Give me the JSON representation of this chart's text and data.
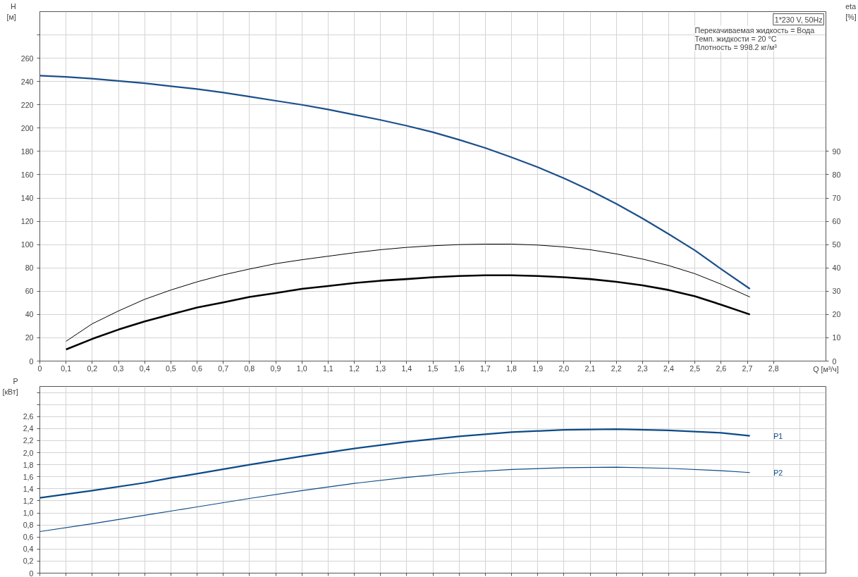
{
  "chart_data": [
    {
      "type": "line",
      "title": "1*230 V, 50Hz",
      "annotations": [
        "Перекачиваемая жидкость = Вода",
        "Темп. жидкости = 20 °C",
        "Плотность = 998.2 кг/м³"
      ],
      "xlabel": "Q [м³/ч]",
      "ylabel": "H\n[м]",
      "y2label": "eta\n[%]",
      "xlim": [
        0,
        3.0
      ],
      "xticks": [
        0,
        {
          "value": 0.1,
          "label": "0,1"
        },
        {
          "value": 0.2,
          "label": "0,2"
        },
        {
          "value": 0.3,
          "label": "0,3"
        },
        {
          "value": 0.4,
          "label": "0,4"
        },
        {
          "value": 0.5,
          "label": "0,5"
        },
        {
          "value": 0.6,
          "label": "0,6"
        },
        {
          "value": 0.7,
          "label": "0,7"
        },
        {
          "value": 0.8,
          "label": "0,8"
        },
        {
          "value": 0.9,
          "label": "0,9"
        },
        {
          "value": 1.0,
          "label": "1,0"
        },
        {
          "value": 1.1,
          "label": "1,1"
        },
        {
          "value": 1.2,
          "label": "1,2"
        },
        {
          "value": 1.3,
          "label": "1,3"
        },
        {
          "value": 1.4,
          "label": "1,4"
        },
        {
          "value": 1.5,
          "label": "1,5"
        },
        {
          "value": 1.6,
          "label": "1,6"
        },
        {
          "value": 1.7,
          "label": "1,7"
        },
        {
          "value": 1.8,
          "label": "1,8"
        },
        {
          "value": 1.9,
          "label": "1,9"
        },
        {
          "value": 2.0,
          "label": "2,0"
        },
        {
          "value": 2.1,
          "label": "2,1"
        },
        {
          "value": 2.2,
          "label": "2,2"
        },
        {
          "value": 2.3,
          "label": "2,3"
        },
        {
          "value": 2.4,
          "label": "2,4"
        },
        {
          "value": 2.5,
          "label": "2,5"
        },
        {
          "value": 2.6,
          "label": "2,6"
        },
        {
          "value": 2.7,
          "label": "2,7"
        },
        {
          "value": 2.8,
          "label": "2,8"
        }
      ],
      "ylim": [
        0,
        300
      ],
      "yticks": [
        0,
        20,
        40,
        60,
        80,
        100,
        120,
        140,
        160,
        180,
        200,
        220,
        240,
        260,
        {
          "value": 280,
          "label": null
        }
      ],
      "y2lim": [
        0,
        150
      ],
      "y2ticks": [
        0,
        10,
        20,
        30,
        40,
        50,
        60,
        70,
        80,
        90
      ],
      "grid": true,
      "series": [
        {
          "color": "#1b4f8a",
          "x": [
            0,
            0.1,
            0.2,
            0.3,
            0.4,
            0.5,
            0.6,
            0.7,
            0.8,
            0.9,
            1.0,
            1.1,
            1.2,
            1.3,
            1.4,
            1.5,
            1.6,
            1.7,
            1.8,
            1.9,
            2.0,
            2.1,
            2.2,
            2.3,
            2.4,
            2.5,
            2.6,
            2.71
          ],
          "values": [
            245,
            244,
            242.5,
            240.5,
            238.5,
            236,
            233.5,
            230.5,
            227,
            223.5,
            220,
            216,
            211.5,
            207,
            202,
            196.5,
            190,
            183,
            175,
            166.5,
            157,
            146.5,
            135,
            122.5,
            109,
            95,
            79,
            62
          ]
        },
        {
          "color": "#000000",
          "axis": "y2",
          "x": [
            0.1,
            0.2,
            0.3,
            0.4,
            0.5,
            0.6,
            0.7,
            0.8,
            0.9,
            1.0,
            1.1,
            1.2,
            1.3,
            1.4,
            1.5,
            1.6,
            1.7,
            1.8,
            1.9,
            2.0,
            2.1,
            2.2,
            2.3,
            2.4,
            2.5,
            2.6,
            2.71
          ],
          "values": [
            8.5,
            16,
            21.5,
            26.5,
            30.5,
            34,
            37,
            39.5,
            41.8,
            43.5,
            45,
            46.5,
            47.8,
            48.8,
            49.5,
            50,
            50.2,
            50.2,
            49.8,
            49,
            47.8,
            46,
            43.8,
            41,
            37.5,
            33,
            27.5
          ]
        },
        {
          "color": "#000000",
          "axis": "y2",
          "x": [
            0.1,
            0.2,
            0.3,
            0.4,
            0.5,
            0.6,
            0.7,
            0.8,
            0.9,
            1.0,
            1.1,
            1.2,
            1.3,
            1.4,
            1.5,
            1.6,
            1.7,
            1.8,
            1.9,
            2.0,
            2.1,
            2.2,
            2.3,
            2.4,
            2.5,
            2.6,
            2.71
          ],
          "values": [
            5,
            9.5,
            13.5,
            17,
            20,
            23,
            25.2,
            27.5,
            29.2,
            31,
            32.2,
            33.5,
            34.5,
            35.2,
            36,
            36.5,
            36.8,
            36.8,
            36.5,
            36,
            35.2,
            34,
            32.5,
            30.5,
            27.8,
            24.2,
            20
          ]
        }
      ]
    },
    {
      "type": "line",
      "ylabel": "P\n[кВт]",
      "tick_labels": "y",
      "xlim": [
        0,
        3.0
      ],
      "xticks": [
        0,
        0.1,
        0.2,
        0.3,
        0.4,
        0.5,
        0.6,
        0.7,
        0.8,
        0.9,
        1.0,
        1.1,
        1.2,
        1.3,
        1.4,
        1.5,
        1.6,
        1.7,
        1.8,
        1.9,
        2.0,
        2.1,
        2.2,
        2.3,
        2.4,
        2.5,
        2.6,
        2.7,
        2.8,
        2.9
      ],
      "ylim": [
        0,
        3.1
      ],
      "yticks": [
        0,
        {
          "value": 0.2,
          "label": "0,2"
        },
        {
          "value": 0.4,
          "label": "0,4"
        },
        {
          "value": 0.6,
          "label": "0,6"
        },
        {
          "value": 0.8,
          "label": "0,8"
        },
        {
          "value": 1.0,
          "label": "1,0"
        },
        {
          "value": 1.2,
          "label": "1,2"
        },
        {
          "value": 1.4,
          "label": "1,4"
        },
        {
          "value": 1.6,
          "label": "1,6"
        },
        {
          "value": 1.8,
          "label": "1,8"
        },
        {
          "value": 2.0,
          "label": "2,0"
        },
        {
          "value": 2.2,
          "label": "2,2"
        },
        {
          "value": 2.4,
          "label": "2,4"
        },
        {
          "value": 2.6,
          "label": "2,6"
        },
        {
          "value": 2.8,
          "label": null
        },
        {
          "value": 3.0,
          "label": null
        }
      ],
      "grid": true,
      "series": [
        {
          "name": "P1",
          "color": "#0d4a86",
          "x": [
            0,
            0.2,
            0.4,
            0.5,
            0.6,
            0.8,
            1.0,
            1.2,
            1.4,
            1.6,
            1.8,
            2.0,
            2.2,
            2.4,
            2.6,
            2.71
          ],
          "values": [
            1.25,
            1.37,
            1.5,
            1.58,
            1.65,
            1.8,
            1.94,
            2.07,
            2.18,
            2.27,
            2.34,
            2.38,
            2.39,
            2.37,
            2.33,
            2.28
          ]
        },
        {
          "name": "P2",
          "color": "#0d4a86",
          "x": [
            0,
            0.2,
            0.4,
            0.6,
            0.8,
            1.0,
            1.2,
            1.4,
            1.6,
            1.8,
            2.0,
            2.2,
            2.4,
            2.6,
            2.71
          ],
          "values": [
            0.69,
            0.82,
            0.96,
            1.1,
            1.24,
            1.37,
            1.49,
            1.59,
            1.67,
            1.72,
            1.75,
            1.76,
            1.74,
            1.7,
            1.67
          ]
        }
      ]
    }
  ]
}
